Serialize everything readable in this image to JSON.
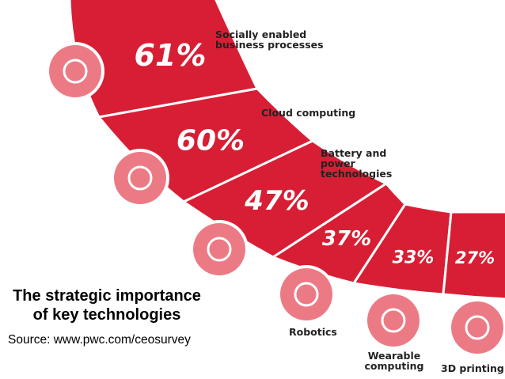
{
  "chart_data": {
    "type": "ribbon",
    "title": "The strategic importance of key technologies",
    "source": "Source: www.pwc.com/ceosurvey",
    "categories": [
      "Socially enabled business processes",
      "Cloud computing",
      "Battery and power technologies",
      "Robotics",
      "Wearable computing",
      "3D printing"
    ],
    "values": [
      61,
      60,
      47,
      37,
      33,
      27
    ],
    "value_labels": [
      "61%",
      "60%",
      "47%",
      "37%",
      "33%",
      "27%"
    ],
    "color": "#d81e34"
  }
}
